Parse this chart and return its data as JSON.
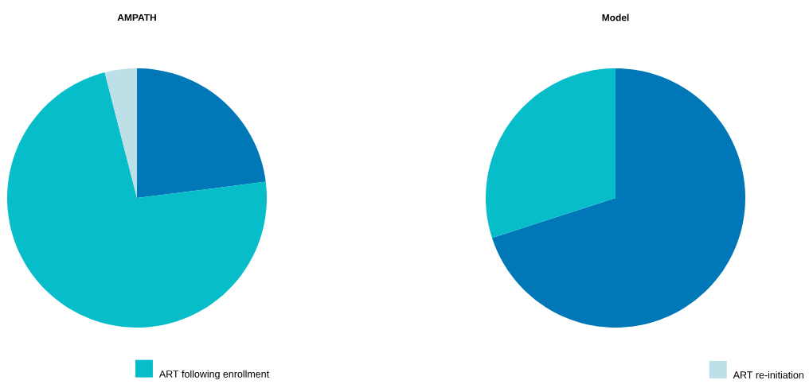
{
  "chart_data": [
    {
      "type": "pie",
      "title": "AMPATH",
      "categories": [
        null,
        "ART following enrollment",
        null
      ],
      "values": [
        23,
        73,
        4
      ],
      "colors": [
        "#0077b6",
        "#07bdca",
        "#bde0e8"
      ],
      "legend": "bottom"
    },
    {
      "type": "pie",
      "title": "Model",
      "categories": [
        null,
        null,
        "ART re-initiation"
      ],
      "values": [
        70,
        30,
        0
      ],
      "colors": [
        "#0077b6",
        "#07bdca",
        "#bde0e8"
      ],
      "legend": "bottom right"
    }
  ]
}
